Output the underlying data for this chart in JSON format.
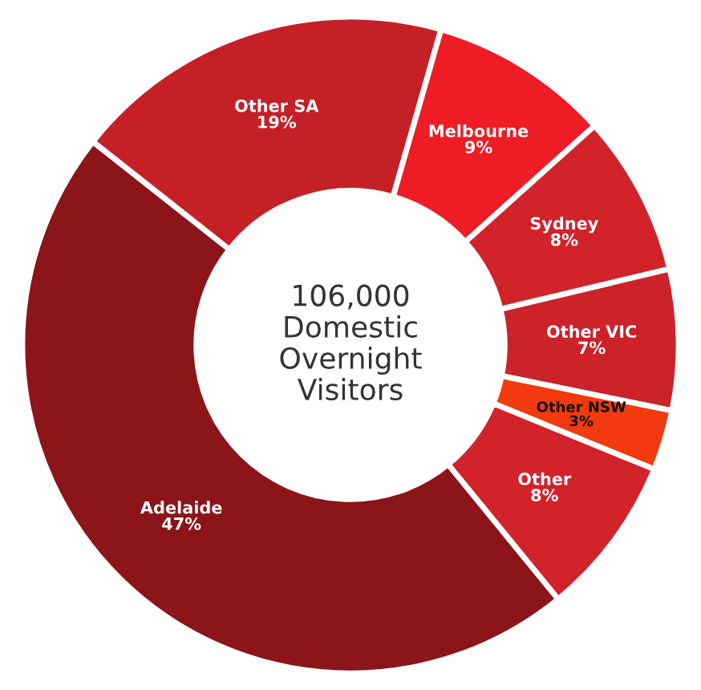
{
  "chart_data": {
    "type": "donut",
    "categories": [
      "Melbourne",
      "Sydney",
      "Other VIC",
      "Other NSW",
      "Other",
      "Adelaide",
      "Other SA"
    ],
    "values": [
      9,
      8,
      7,
      3,
      8,
      47,
      19
    ],
    "colors": [
      "#ee1c24",
      "#d2232a",
      "#cc2229",
      "#f23a0e",
      "#d2232a",
      "#8b1519",
      "#c62027"
    ],
    "annotations": [
      "106,000\nDomestic\nOvernight\nVisitors"
    ],
    "value_labels": [
      "9%",
      "8%",
      "7%",
      "3%",
      "8%",
      "47%",
      "19%"
    ],
    "legend": false
  }
}
